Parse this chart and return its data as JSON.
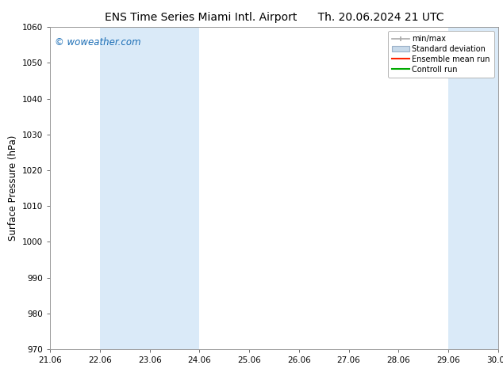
{
  "title_left": "ENS Time Series Miami Intl. Airport",
  "title_right": "Th. 20.06.2024 21 UTC",
  "ylabel": "Surface Pressure (hPa)",
  "ylim": [
    970,
    1060
  ],
  "yticks": [
    970,
    980,
    990,
    1000,
    1010,
    1020,
    1030,
    1040,
    1050,
    1060
  ],
  "xlim_min": 21.06,
  "xlim_max": 30.06,
  "xticks": [
    21.06,
    22.06,
    23.06,
    24.06,
    25.06,
    26.06,
    27.06,
    28.06,
    29.06,
    30.06
  ],
  "xticklabels": [
    "21.06",
    "22.06",
    "23.06",
    "24.06",
    "25.06",
    "26.06",
    "27.06",
    "28.06",
    "29.06",
    "30.06"
  ],
  "watermark": "© woweather.com",
  "watermark_color": "#1a6db5",
  "background_color": "#ffffff",
  "plot_bg_color": "#ffffff",
  "band_color": "#daeaf8",
  "shaded_bands": [
    {
      "x_start": 22.06,
      "x_end": 24.06
    },
    {
      "x_start": 29.06,
      "x_end": 30.06
    }
  ],
  "title_fontsize": 10,
  "tick_fontsize": 7.5,
  "ylabel_fontsize": 8.5,
  "legend_fontsize": 7,
  "spine_color": "#999999",
  "tick_color": "#555555",
  "minmax_color": "#aaaaaa",
  "std_facecolor": "#c8daea",
  "std_edgecolor": "#9ab0c8",
  "ensemble_color": "#ff2200",
  "control_color": "#00aa00"
}
